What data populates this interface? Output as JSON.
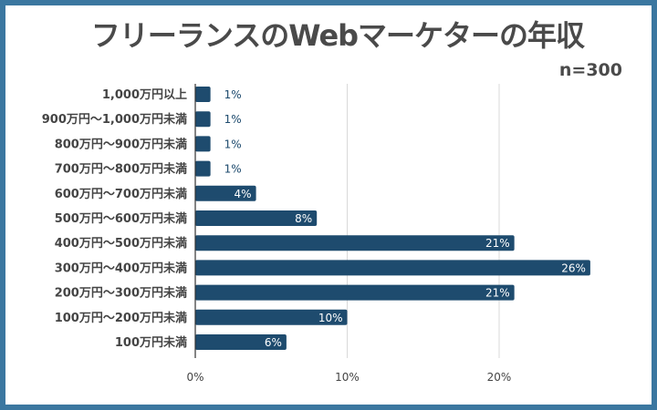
{
  "chart_data": {
    "type": "bar",
    "orientation": "horizontal",
    "title": "フリーランスのWebマーケターの年収",
    "subtitle": "n=300",
    "categories": [
      "1,000万円以上",
      "900万円〜1,000万円未満",
      "800万円〜900万円未満",
      "700万円〜800万円未満",
      "600万円〜700万円未満",
      "500万円〜600万円未満",
      "400万円〜500万円未満",
      "300万円〜400万円未満",
      "200万円〜300万円未満",
      "100万円〜200万円未満",
      "100万円未満"
    ],
    "values": [
      1,
      1,
      1,
      1,
      4,
      8,
      21,
      26,
      21,
      10,
      6
    ],
    "value_labels": [
      "1%",
      "1%",
      "1%",
      "1%",
      "4%",
      "8%",
      "21%",
      "26%",
      "21%",
      "10%",
      "6%"
    ],
    "x_ticks": [
      "0%",
      "10%",
      "20%"
    ],
    "x_tick_values": [
      0,
      10,
      20
    ],
    "xlim": [
      0,
      30
    ],
    "xlabel": "",
    "ylabel": "",
    "grid": true,
    "bar_color": "#1e4b6e",
    "inside_label_color": "#ffffff",
    "outside_label_color": "#1e4b6e"
  }
}
